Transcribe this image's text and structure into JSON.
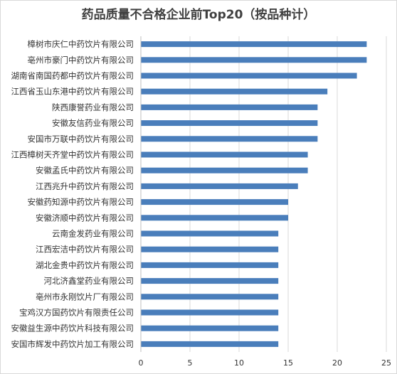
{
  "chart_data": {
    "type": "bar",
    "orientation": "horizontal",
    "title": "药品质量不合格企业前Top20（按品种计）",
    "xlabel": "",
    "ylabel": "",
    "xlim": [
      0,
      25
    ],
    "xticks": [
      0,
      5,
      10,
      15,
      20,
      25
    ],
    "grid": "vertical",
    "legend": "none",
    "bar_color": "#4a7ebb",
    "categories": [
      "樟树市庆仁中药饮片有限公司",
      "亳州市豪门中药饮片有限公司",
      "湖南省南国药都中药饮片有限公司",
      "江西省玉山东港中药饮片有限公司",
      "陕西康誉药业有限公司",
      "安徽友信药业有限公司",
      "安国市万联中药饮片有限公司",
      "江西樟树天齐堂中药饮片有限公司",
      "安徽孟氏中药饮片有限公司",
      "江西兆升中药饮片有限公司",
      "安徽药知源中药饮片有限公司",
      "安徽济顺中药饮片有限公司",
      "云南金发药业有限公司",
      "江西宏洁中药饮片有限公司",
      "湖北金贵中药饮片有限公司",
      "河北济鑫堂药业有限公司",
      "亳州市永刚饮片厂有限公司",
      "宝鸡汉方国药饮片有限责任公司",
      "安徽益生源中药饮片科技有限公司",
      "安国市辉发中药饮片加工有限公司"
    ],
    "values": [
      23,
      23,
      22,
      19,
      18,
      18,
      18,
      17,
      17,
      16,
      15,
      15,
      14,
      14,
      14,
      14,
      14,
      14,
      14,
      14
    ]
  }
}
